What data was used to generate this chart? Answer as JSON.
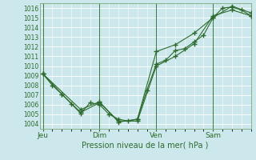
{
  "title": "",
  "xlabel": "Pression niveau de la mer( hPa )",
  "bg_color": "#cce8ec",
  "grid_color": "#ffffff",
  "line_color": "#2d6a2d",
  "ylim": [
    1003.5,
    1016.5
  ],
  "yticks": [
    1004,
    1005,
    1006,
    1007,
    1008,
    1009,
    1010,
    1011,
    1012,
    1013,
    1014,
    1015,
    1016
  ],
  "xtick_labels": [
    "Jeu",
    "Dim",
    "Ven",
    "Sam"
  ],
  "xtick_positions": [
    0,
    36,
    72,
    108
  ],
  "xlim": [
    -2,
    132
  ],
  "vlines": [
    0,
    36,
    72,
    108
  ],
  "series1_x": [
    0,
    6,
    12,
    18,
    24,
    30,
    36,
    42,
    48,
    54,
    60,
    66,
    72,
    78,
    84,
    90,
    96,
    102,
    108,
    114,
    120,
    126,
    132
  ],
  "series1_y": [
    1009.2,
    1008.0,
    1007.1,
    1006.1,
    1005.1,
    1006.2,
    1006.0,
    1005.0,
    1004.5,
    1004.3,
    1004.5,
    1007.5,
    1010.2,
    1010.6,
    1011.6,
    1011.8,
    1012.5,
    1013.2,
    1015.0,
    1016.0,
    1016.1,
    1015.8,
    1015.2
  ],
  "series2_x": [
    0,
    12,
    24,
    36,
    48,
    60,
    72,
    84,
    96,
    108,
    120,
    132
  ],
  "series2_y": [
    1009.2,
    1007.1,
    1005.2,
    1006.2,
    1004.3,
    1004.3,
    1010.0,
    1011.0,
    1012.3,
    1015.2,
    1015.8,
    1015.2
  ],
  "series3_x": [
    0,
    24,
    36,
    48,
    60,
    72,
    84,
    96,
    108,
    120,
    132
  ],
  "series3_y": [
    1009.2,
    1005.5,
    1006.3,
    1004.2,
    1004.5,
    1011.5,
    1012.2,
    1013.4,
    1015.0,
    1016.2,
    1015.5
  ]
}
